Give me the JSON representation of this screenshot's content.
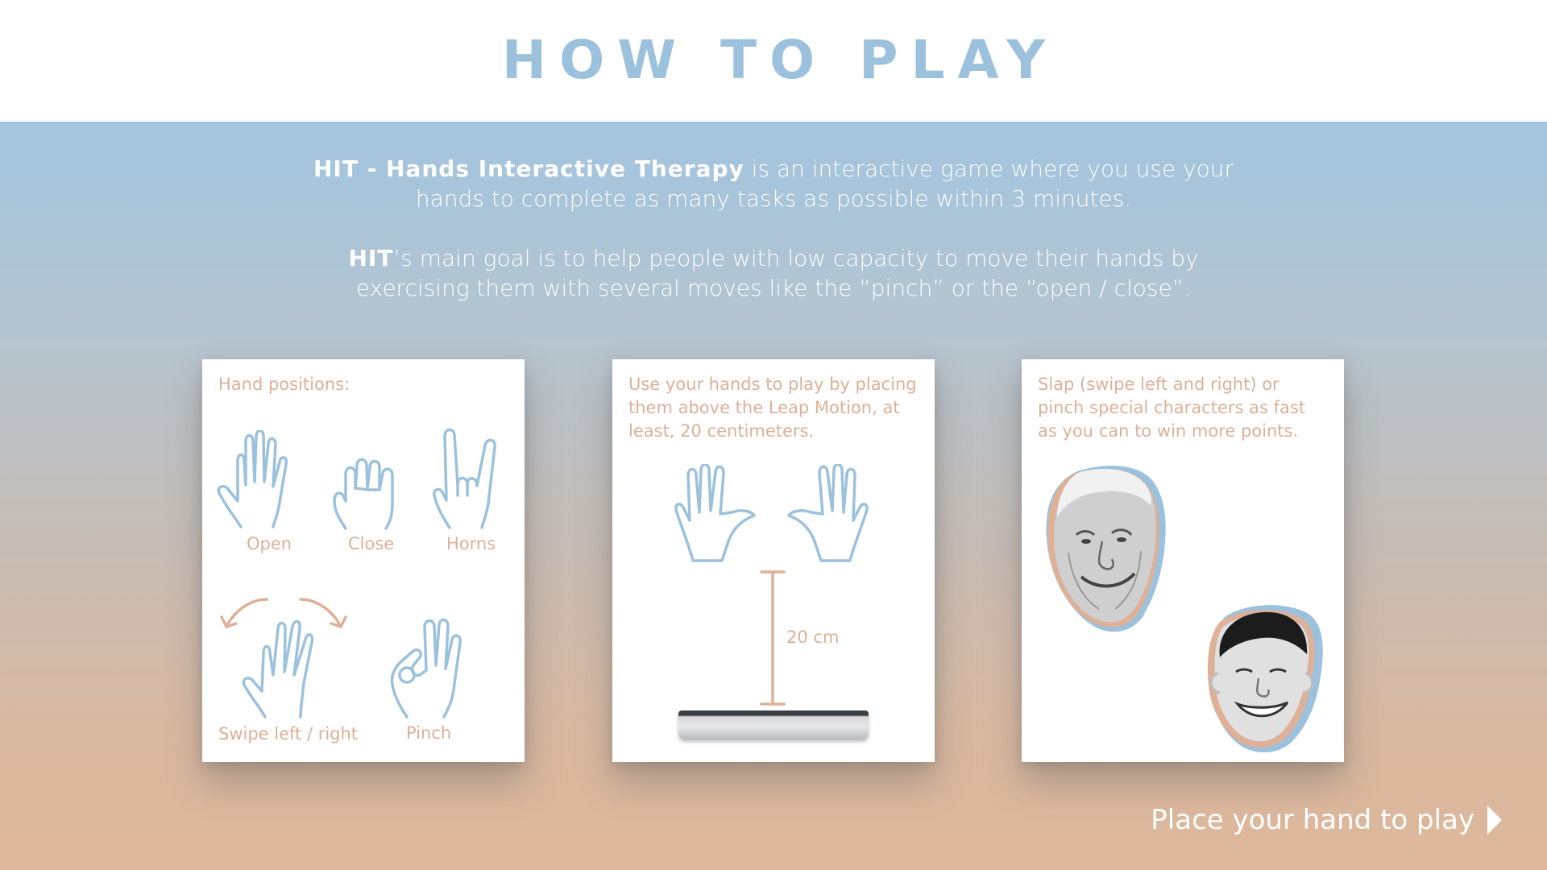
{
  "header": {
    "title": "HOW TO PLAY"
  },
  "intro": {
    "p1_bold": "HIT - Hands Interactive Therapy",
    "p1_rest": " is an interactive game where you use your hands to complete as many tasks as possible within 3 minutes.",
    "p2_bold": "HIT",
    "p2_rest": "’s main goal is to help people with low capacity to move their hands by exercising them with several moves like the “pinch” or the “open / close”."
  },
  "card1": {
    "heading": "Hand positions:",
    "labels": {
      "open": "Open",
      "close": "Close",
      "horns": "Horns",
      "swipe": "Swipe left / right",
      "pinch": "Pinch"
    }
  },
  "card2": {
    "text": "Use your hands to play by placing them above the Leap Motion, at least, 20 centimeters.",
    "distance_label": "20 cm"
  },
  "card3": {
    "text": "Slap (swipe left and right) or pinch special characters as fast as you can to win more points."
  },
  "cta": {
    "label": "Place your hand to play",
    "icon": "play-triangle-icon"
  },
  "colors": {
    "accent_blue": "#9bc1dd",
    "accent_peach": "#ddb097"
  }
}
